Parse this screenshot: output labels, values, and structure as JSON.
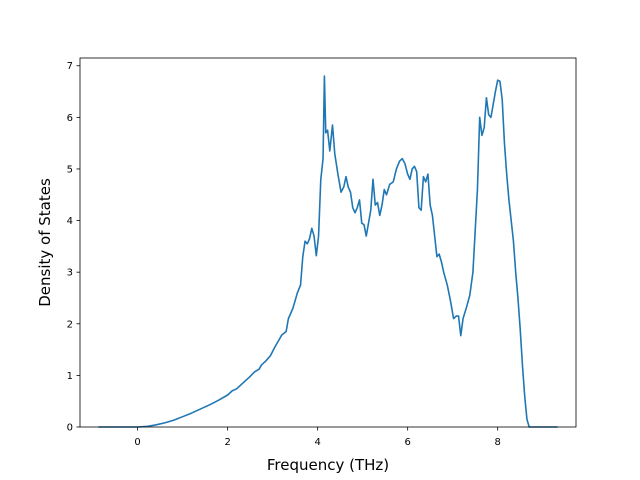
{
  "chart_data": {
    "type": "line",
    "title": "",
    "xlabel": "Frequency (THz)",
    "ylabel": "Density of States",
    "xlim": [
      -1.28,
      9.74
    ],
    "ylim": [
      0,
      7.15
    ],
    "xticks": [
      0,
      2,
      4,
      6,
      8
    ],
    "yticks": [
      0,
      1,
      2,
      3,
      4,
      5,
      6,
      7
    ],
    "grid": false,
    "legend": "none",
    "series": [
      {
        "color": "#1f77b4",
        "points": [
          [
            -0.86,
            0.0
          ],
          [
            0.0,
            0.0
          ],
          [
            0.2,
            0.01
          ],
          [
            0.4,
            0.04
          ],
          [
            0.6,
            0.08
          ],
          [
            0.8,
            0.13
          ],
          [
            1.0,
            0.2
          ],
          [
            1.2,
            0.27
          ],
          [
            1.4,
            0.35
          ],
          [
            1.6,
            0.43
          ],
          [
            1.8,
            0.52
          ],
          [
            2.0,
            0.62
          ],
          [
            2.1,
            0.7
          ],
          [
            2.2,
            0.74
          ],
          [
            2.3,
            0.82
          ],
          [
            2.4,
            0.9
          ],
          [
            2.5,
            0.98
          ],
          [
            2.6,
            1.07
          ],
          [
            2.7,
            1.12
          ],
          [
            2.75,
            1.2
          ],
          [
            2.85,
            1.28
          ],
          [
            2.95,
            1.38
          ],
          [
            3.05,
            1.55
          ],
          [
            3.15,
            1.7
          ],
          [
            3.2,
            1.78
          ],
          [
            3.3,
            1.85
          ],
          [
            3.35,
            2.1
          ],
          [
            3.45,
            2.3
          ],
          [
            3.55,
            2.6
          ],
          [
            3.62,
            2.75
          ],
          [
            3.67,
            3.3
          ],
          [
            3.72,
            3.6
          ],
          [
            3.77,
            3.55
          ],
          [
            3.82,
            3.65
          ],
          [
            3.87,
            3.85
          ],
          [
            3.92,
            3.7
          ],
          [
            3.97,
            3.32
          ],
          [
            4.02,
            3.7
          ],
          [
            4.07,
            4.8
          ],
          [
            4.12,
            5.2
          ],
          [
            4.15,
            6.8
          ],
          [
            4.18,
            5.7
          ],
          [
            4.22,
            5.75
          ],
          [
            4.27,
            5.35
          ],
          [
            4.33,
            5.85
          ],
          [
            4.38,
            5.3
          ],
          [
            4.45,
            4.9
          ],
          [
            4.52,
            4.55
          ],
          [
            4.58,
            4.65
          ],
          [
            4.63,
            4.85
          ],
          [
            4.68,
            4.65
          ],
          [
            4.73,
            4.55
          ],
          [
            4.78,
            4.25
          ],
          [
            4.83,
            4.15
          ],
          [
            4.88,
            4.25
          ],
          [
            4.93,
            4.4
          ],
          [
            4.98,
            3.95
          ],
          [
            5.03,
            3.92
          ],
          [
            5.08,
            3.7
          ],
          [
            5.13,
            3.95
          ],
          [
            5.18,
            4.2
          ],
          [
            5.23,
            4.8
          ],
          [
            5.28,
            4.3
          ],
          [
            5.33,
            4.35
          ],
          [
            5.38,
            4.1
          ],
          [
            5.43,
            4.3
          ],
          [
            5.48,
            4.6
          ],
          [
            5.53,
            4.5
          ],
          [
            5.6,
            4.7
          ],
          [
            5.68,
            4.75
          ],
          [
            5.75,
            5.0
          ],
          [
            5.82,
            5.15
          ],
          [
            5.88,
            5.2
          ],
          [
            5.94,
            5.1
          ],
          [
            6.0,
            4.9
          ],
          [
            6.05,
            4.8
          ],
          [
            6.1,
            5.0
          ],
          [
            6.15,
            5.05
          ],
          [
            6.2,
            4.95
          ],
          [
            6.25,
            4.25
          ],
          [
            6.3,
            4.2
          ],
          [
            6.35,
            4.85
          ],
          [
            6.4,
            4.75
          ],
          [
            6.45,
            4.9
          ],
          [
            6.5,
            4.3
          ],
          [
            6.55,
            4.1
          ],
          [
            6.6,
            3.7
          ],
          [
            6.65,
            3.3
          ],
          [
            6.7,
            3.35
          ],
          [
            6.75,
            3.2
          ],
          [
            6.8,
            3.0
          ],
          [
            6.88,
            2.75
          ],
          [
            6.95,
            2.45
          ],
          [
            7.02,
            2.1
          ],
          [
            7.08,
            2.15
          ],
          [
            7.13,
            2.15
          ],
          [
            7.18,
            1.77
          ],
          [
            7.23,
            2.1
          ],
          [
            7.3,
            2.3
          ],
          [
            7.38,
            2.55
          ],
          [
            7.45,
            3.0
          ],
          [
            7.5,
            3.8
          ],
          [
            7.55,
            4.6
          ],
          [
            7.6,
            6.0
          ],
          [
            7.65,
            5.65
          ],
          [
            7.7,
            5.8
          ],
          [
            7.75,
            6.38
          ],
          [
            7.8,
            6.05
          ],
          [
            7.85,
            6.0
          ],
          [
            7.9,
            6.25
          ],
          [
            7.95,
            6.5
          ],
          [
            8.0,
            6.72
          ],
          [
            8.05,
            6.7
          ],
          [
            8.1,
            6.35
          ],
          [
            8.15,
            5.5
          ],
          [
            8.2,
            4.9
          ],
          [
            8.25,
            4.4
          ],
          [
            8.3,
            4.0
          ],
          [
            8.35,
            3.6
          ],
          [
            8.4,
            3.0
          ],
          [
            8.45,
            2.5
          ],
          [
            8.5,
            1.9
          ],
          [
            8.55,
            1.2
          ],
          [
            8.6,
            0.6
          ],
          [
            8.65,
            0.15
          ],
          [
            8.7,
            0.0
          ],
          [
            9.32,
            0.0
          ]
        ]
      }
    ]
  }
}
